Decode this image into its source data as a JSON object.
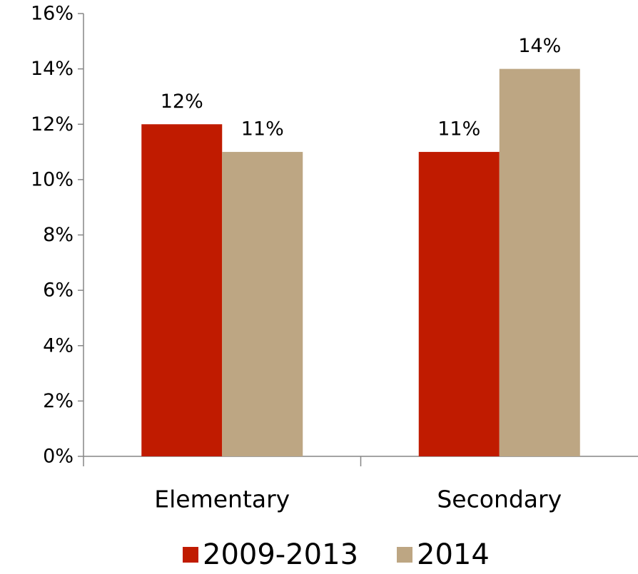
{
  "chart_data": {
    "type": "bar",
    "categories": [
      "Elementary",
      "Secondary"
    ],
    "series": [
      {
        "name": "2009-2013",
        "values": [
          12,
          11
        ],
        "labels": [
          "12%",
          "11%"
        ],
        "color": "#C01B00"
      },
      {
        "name": "2014",
        "values": [
          11,
          14
        ],
        "labels": [
          "11%",
          "14%"
        ],
        "color": "#BDA683"
      }
    ],
    "yticks": [
      0,
      2,
      4,
      6,
      8,
      10,
      12,
      14,
      16
    ],
    "ytick_labels": [
      "0%",
      "2%",
      "4%",
      "6%",
      "8%",
      "10%",
      "12%",
      "14%",
      "16%"
    ],
    "ylim": [
      0,
      16
    ],
    "grid": false,
    "legend_position": "bottom"
  }
}
